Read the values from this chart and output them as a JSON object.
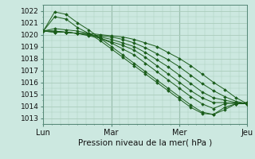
{
  "xlabel": "Pression niveau de la mer( hPa )",
  "ylim": [
    1012.5,
    1022.5
  ],
  "yticks": [
    1013,
    1014,
    1015,
    1016,
    1017,
    1018,
    1019,
    1020,
    1021,
    1022
  ],
  "xtick_positions": [
    0,
    1,
    2,
    3
  ],
  "xtick_labels": [
    "Lun",
    "Mar",
    "Mer",
    "Jeu"
  ],
  "bg_color": "#cce8e0",
  "grid_color": "#aaccbb",
  "line_color": "#1a5c1a",
  "marker_color": "#1a5c1a",
  "series": [
    [
      1020.3,
      1021.9,
      1021.7,
      1021.0,
      1020.4,
      1019.7,
      1019.0,
      1018.3,
      1017.6,
      1016.9,
      1016.2,
      1015.5,
      1014.8,
      1014.1,
      1013.5,
      1013.3,
      1013.7,
      1014.2,
      1014.3
    ],
    [
      1020.3,
      1021.5,
      1021.3,
      1020.6,
      1020.1,
      1019.5,
      1018.8,
      1018.1,
      1017.4,
      1016.7,
      1016.0,
      1015.3,
      1014.6,
      1013.9,
      1013.4,
      1013.3,
      1013.9,
      1014.2,
      1014.3
    ],
    [
      1020.3,
      1020.5,
      1020.4,
      1020.3,
      1020.1,
      1019.7,
      1019.3,
      1018.8,
      1018.3,
      1017.6,
      1016.9,
      1016.2,
      1015.5,
      1014.8,
      1014.2,
      1013.8,
      1014.2,
      1014.3,
      1014.2
    ],
    [
      1020.3,
      1020.3,
      1020.2,
      1020.1,
      1019.9,
      1019.7,
      1019.4,
      1019.1,
      1018.7,
      1018.1,
      1017.4,
      1016.7,
      1016.0,
      1015.3,
      1014.7,
      1014.3,
      1014.3,
      1014.2,
      1014.2
    ],
    [
      1020.3,
      1020.3,
      1020.2,
      1020.1,
      1020.0,
      1019.8,
      1019.6,
      1019.3,
      1019.0,
      1018.5,
      1017.9,
      1017.3,
      1016.6,
      1015.9,
      1015.2,
      1014.7,
      1014.5,
      1014.3,
      1014.2
    ],
    [
      1020.3,
      1020.2,
      1020.2,
      1020.1,
      1020.0,
      1019.9,
      1019.8,
      1019.6,
      1019.3,
      1018.9,
      1018.4,
      1017.9,
      1017.3,
      1016.6,
      1015.9,
      1015.3,
      1014.8,
      1014.4,
      1014.2
    ],
    [
      1020.3,
      1020.2,
      1020.2,
      1020.1,
      1020.1,
      1020.0,
      1019.9,
      1019.8,
      1019.6,
      1019.3,
      1019.0,
      1018.5,
      1018.0,
      1017.4,
      1016.7,
      1016.0,
      1015.4,
      1014.7,
      1014.2
    ]
  ],
  "n_days": 3,
  "figsize": [
    3.2,
    2.0
  ],
  "dpi": 100
}
